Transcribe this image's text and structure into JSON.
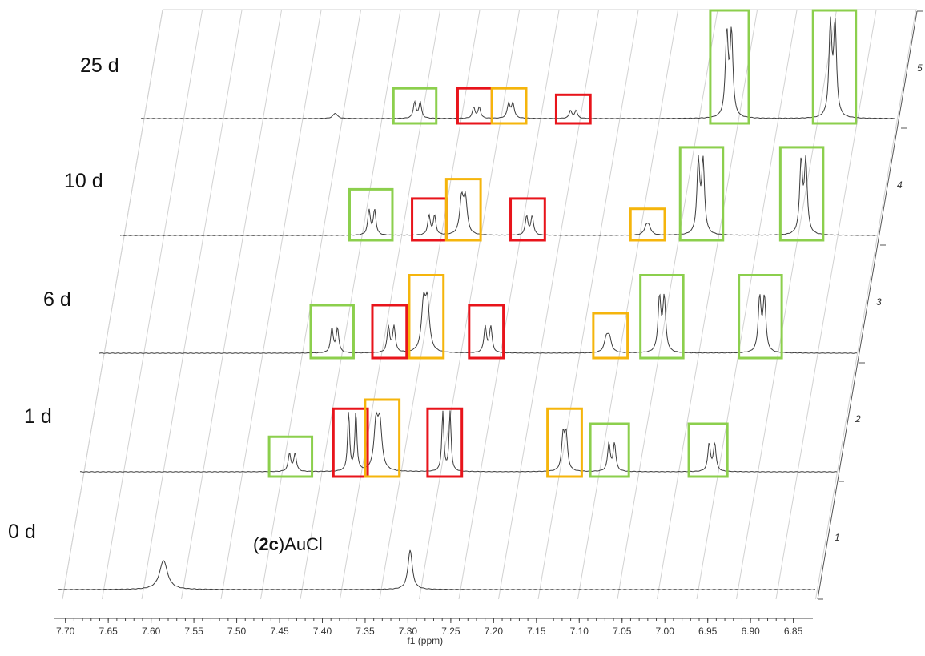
{
  "chart_data": {
    "type": "line",
    "subtype": "stacked-nmr-spectra",
    "xlabel": "f1 (ppm)",
    "x_ticks": [
      7.7,
      7.65,
      7.6,
      7.55,
      7.5,
      7.45,
      7.4,
      7.35,
      7.3,
      7.25,
      7.2,
      7.15,
      7.1,
      7.05,
      7.0,
      6.95,
      6.9,
      6.85
    ],
    "x_tick_labels": [
      "7.70",
      "7.65",
      "7.60",
      "7.55",
      "7.50",
      "7.45",
      "7.40",
      "7.35",
      "7.30",
      "7.25",
      "7.20",
      "7.15",
      "7.10",
      "7.05",
      "7.00",
      "6.95",
      "6.90",
      "6.85"
    ],
    "xlim": [
      7.71,
      6.83
    ],
    "x_reversed": true,
    "right_axis_labels": [
      "1",
      "2",
      "3",
      "4",
      "5"
    ],
    "annotation": {
      "prefix": "(",
      "bold": "2c",
      "suffix": ")AuCl"
    },
    "box_colors": {
      "green": "#8ccf4d",
      "red": "#e8141b",
      "orange": "#f5b50c"
    },
    "series": [
      {
        "name": "0 d",
        "peaks": [
          {
            "ppm": 7.565,
            "height": 0.28,
            "width": 0.0055,
            "split": 0
          },
          {
            "ppm": 7.277,
            "height": 0.38,
            "width": 0.003,
            "split": 0
          }
        ],
        "boxes": []
      },
      {
        "name": "1 d",
        "peaks": [
          {
            "ppm": 7.438,
            "height": 0.19,
            "width": 0.0018,
            "split": 0.0065
          },
          {
            "ppm": 7.368,
            "height": 0.61,
            "width": 0.0014,
            "split": 0.0085
          },
          {
            "ppm": 7.338,
            "height": 0.58,
            "width": 0.0028,
            "split": 0.0045
          },
          {
            "ppm": 7.258,
            "height": 0.61,
            "width": 0.0014,
            "split": 0.0085
          },
          {
            "ppm": 7.12,
            "height": 0.43,
            "width": 0.002,
            "split": 0.0035
          },
          {
            "ppm": 7.065,
            "height": 0.3,
            "width": 0.0018,
            "split": 0.0065
          },
          {
            "ppm": 6.948,
            "height": 0.3,
            "width": 0.0018,
            "split": 0.0065
          }
        ],
        "boxes": [
          {
            "color": "green",
            "ppm_from": 7.465,
            "ppm_to": 7.415,
            "height": 0.35
          },
          {
            "color": "red",
            "ppm_from": 7.39,
            "ppm_to": 7.35,
            "height": 0.63
          },
          {
            "color": "orange",
            "ppm_from": 7.353,
            "ppm_to": 7.313,
            "height": 0.72
          },
          {
            "color": "red",
            "ppm_from": 7.28,
            "ppm_to": 7.24,
            "height": 0.63
          },
          {
            "color": "orange",
            "ppm_from": 7.14,
            "ppm_to": 7.1,
            "height": 0.63
          },
          {
            "color": "green",
            "ppm_from": 7.09,
            "ppm_to": 7.045,
            "height": 0.48
          },
          {
            "color": "green",
            "ppm_from": 6.975,
            "ppm_to": 6.93,
            "height": 0.48
          }
        ]
      },
      {
        "name": "6 d",
        "peaks": [
          {
            "ppm": 7.412,
            "height": 0.26,
            "width": 0.0018,
            "split": 0.0065
          },
          {
            "ppm": 7.346,
            "height": 0.28,
            "width": 0.0018,
            "split": 0.0065
          },
          {
            "ppm": 7.306,
            "height": 0.6,
            "width": 0.0028,
            "split": 0.0045
          },
          {
            "ppm": 7.233,
            "height": 0.28,
            "width": 0.0018,
            "split": 0.0065
          },
          {
            "ppm": 7.093,
            "height": 0.19,
            "width": 0.0028,
            "split": 0.0035
          },
          {
            "ppm": 7.03,
            "height": 0.6,
            "width": 0.002,
            "split": 0.0055
          },
          {
            "ppm": 6.913,
            "height": 0.6,
            "width": 0.002,
            "split": 0.0055
          }
        ],
        "boxes": [
          {
            "color": "green",
            "ppm_from": 7.44,
            "ppm_to": 7.39,
            "height": 0.48
          },
          {
            "color": "red",
            "ppm_from": 7.368,
            "ppm_to": 7.328,
            "height": 0.48
          },
          {
            "color": "orange",
            "ppm_from": 7.325,
            "ppm_to": 7.285,
            "height": 0.78
          },
          {
            "color": "red",
            "ppm_from": 7.255,
            "ppm_to": 7.215,
            "height": 0.48
          },
          {
            "color": "orange",
            "ppm_from": 7.11,
            "ppm_to": 7.07,
            "height": 0.4
          },
          {
            "color": "green",
            "ppm_from": 7.055,
            "ppm_to": 7.005,
            "height": 0.78
          },
          {
            "color": "green",
            "ppm_from": 6.94,
            "ppm_to": 6.89,
            "height": 0.78
          }
        ]
      },
      {
        "name": "10 d",
        "peaks": [
          {
            "ppm": 7.392,
            "height": 0.26,
            "width": 0.0018,
            "split": 0.0065
          },
          {
            "ppm": 7.322,
            "height": 0.2,
            "width": 0.0018,
            "split": 0.0065
          },
          {
            "ppm": 7.285,
            "height": 0.42,
            "width": 0.0025,
            "split": 0.0045
          },
          {
            "ppm": 7.208,
            "height": 0.2,
            "width": 0.0018,
            "split": 0.0065
          },
          {
            "ppm": 7.07,
            "height": 0.11,
            "width": 0.0028,
            "split": 0.003
          },
          {
            "ppm": 7.008,
            "height": 0.78,
            "width": 0.002,
            "split": 0.0055
          },
          {
            "ppm": 6.888,
            "height": 0.78,
            "width": 0.002,
            "split": 0.0055
          }
        ],
        "boxes": [
          {
            "color": "green",
            "ppm_from": 7.418,
            "ppm_to": 7.368,
            "height": 0.45
          },
          {
            "color": "red",
            "ppm_from": 7.345,
            "ppm_to": 7.305,
            "height": 0.36
          },
          {
            "color": "orange",
            "ppm_from": 7.305,
            "ppm_to": 7.265,
            "height": 0.55
          },
          {
            "color": "red",
            "ppm_from": 7.23,
            "ppm_to": 7.19,
            "height": 0.36
          },
          {
            "color": "orange",
            "ppm_from": 7.09,
            "ppm_to": 7.05,
            "height": 0.26
          },
          {
            "color": "green",
            "ppm_from": 7.032,
            "ppm_to": 6.982,
            "height": 0.86
          },
          {
            "color": "green",
            "ppm_from": 6.915,
            "ppm_to": 6.865,
            "height": 0.86
          }
        ]
      },
      {
        "name": "25 d",
        "peaks": [
          {
            "ppm": 7.458,
            "height": 0.05,
            "width": 0.003,
            "split": 0
          },
          {
            "ppm": 7.362,
            "height": 0.16,
            "width": 0.0018,
            "split": 0.0065
          },
          {
            "ppm": 7.293,
            "height": 0.11,
            "width": 0.0018,
            "split": 0.0065
          },
          {
            "ppm": 7.253,
            "height": 0.15,
            "width": 0.002,
            "split": 0.005
          },
          {
            "ppm": 7.18,
            "height": 0.08,
            "width": 0.0018,
            "split": 0.0065
          },
          {
            "ppm": 6.998,
            "height": 0.86,
            "width": 0.002,
            "split": 0.0055
          },
          {
            "ppm": 6.877,
            "height": 0.94,
            "width": 0.002,
            "split": 0.0055
          }
        ],
        "boxes": [
          {
            "color": "green",
            "ppm_from": 7.39,
            "ppm_to": 7.34,
            "height": 0.28
          },
          {
            "color": "red",
            "ppm_from": 7.315,
            "ppm_to": 7.275,
            "height": 0.28
          },
          {
            "color": "orange",
            "ppm_from": 7.275,
            "ppm_to": 7.235,
            "height": 0.28
          },
          {
            "color": "red",
            "ppm_from": 7.2,
            "ppm_to": 7.16,
            "height": 0.22
          },
          {
            "color": "green",
            "ppm_from": 7.02,
            "ppm_to": 6.975,
            "height": 1.0
          },
          {
            "color": "green",
            "ppm_from": 6.9,
            "ppm_to": 6.85,
            "height": 1.0
          }
        ]
      }
    ]
  }
}
